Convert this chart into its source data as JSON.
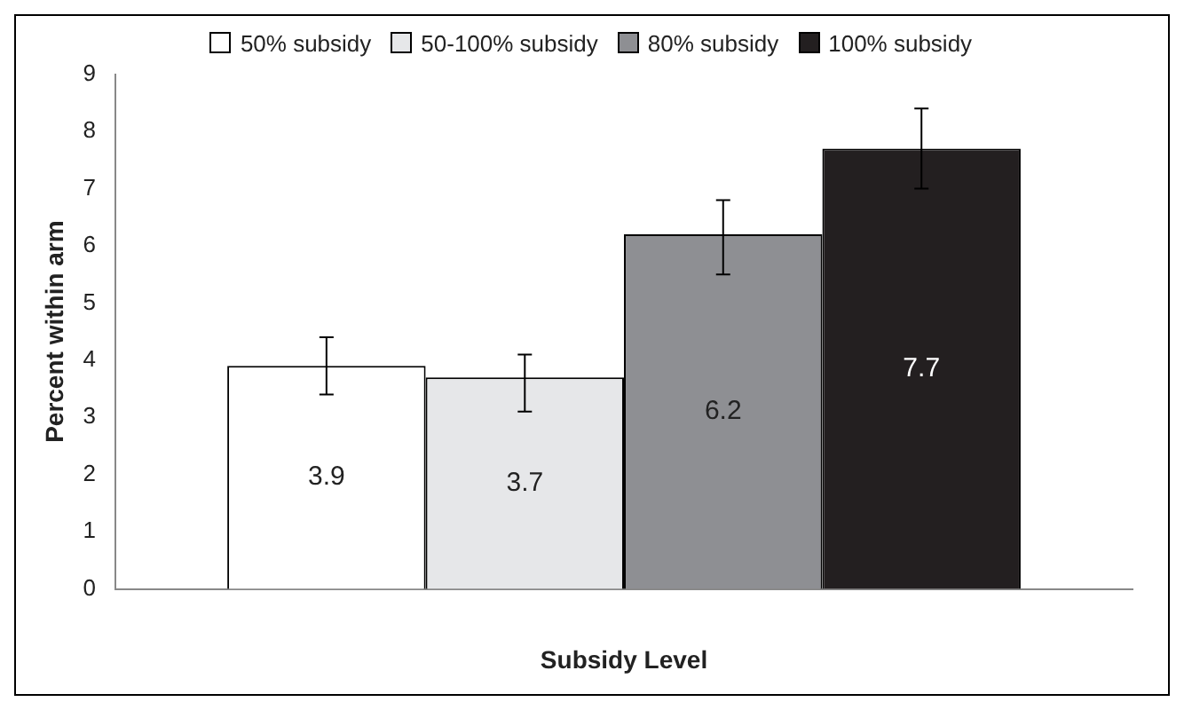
{
  "chart_data": {
    "type": "bar",
    "xlabel": "Subsidy Level",
    "ylabel": "Percent within arm",
    "categories": [
      null
    ],
    "series": [
      {
        "name": "50% subsidy",
        "color": "#ffffff",
        "values": [
          3.9
        ],
        "errors": [
          [
            3.4,
            4.4
          ]
        ]
      },
      {
        "name": "50-100% subsidy",
        "color": "#e6e7e9",
        "values": [
          3.7
        ],
        "errors": [
          [
            3.1,
            4.1
          ]
        ]
      },
      {
        "name": "80% subsidy",
        "color": "#8e8f93",
        "values": [
          6.2
        ],
        "errors": [
          [
            5.5,
            6.8
          ]
        ]
      },
      {
        "name": "100% subsidy",
        "color": "#231f20",
        "values": [
          7.7
        ],
        "errors": [
          [
            7.0,
            8.4
          ]
        ]
      }
    ],
    "ylim": [
      0,
      9
    ],
    "yticks": [
      0,
      1,
      2,
      3,
      4,
      5,
      6,
      7,
      8,
      9
    ],
    "grid": false,
    "legend": "top",
    "data_labels": true
  }
}
